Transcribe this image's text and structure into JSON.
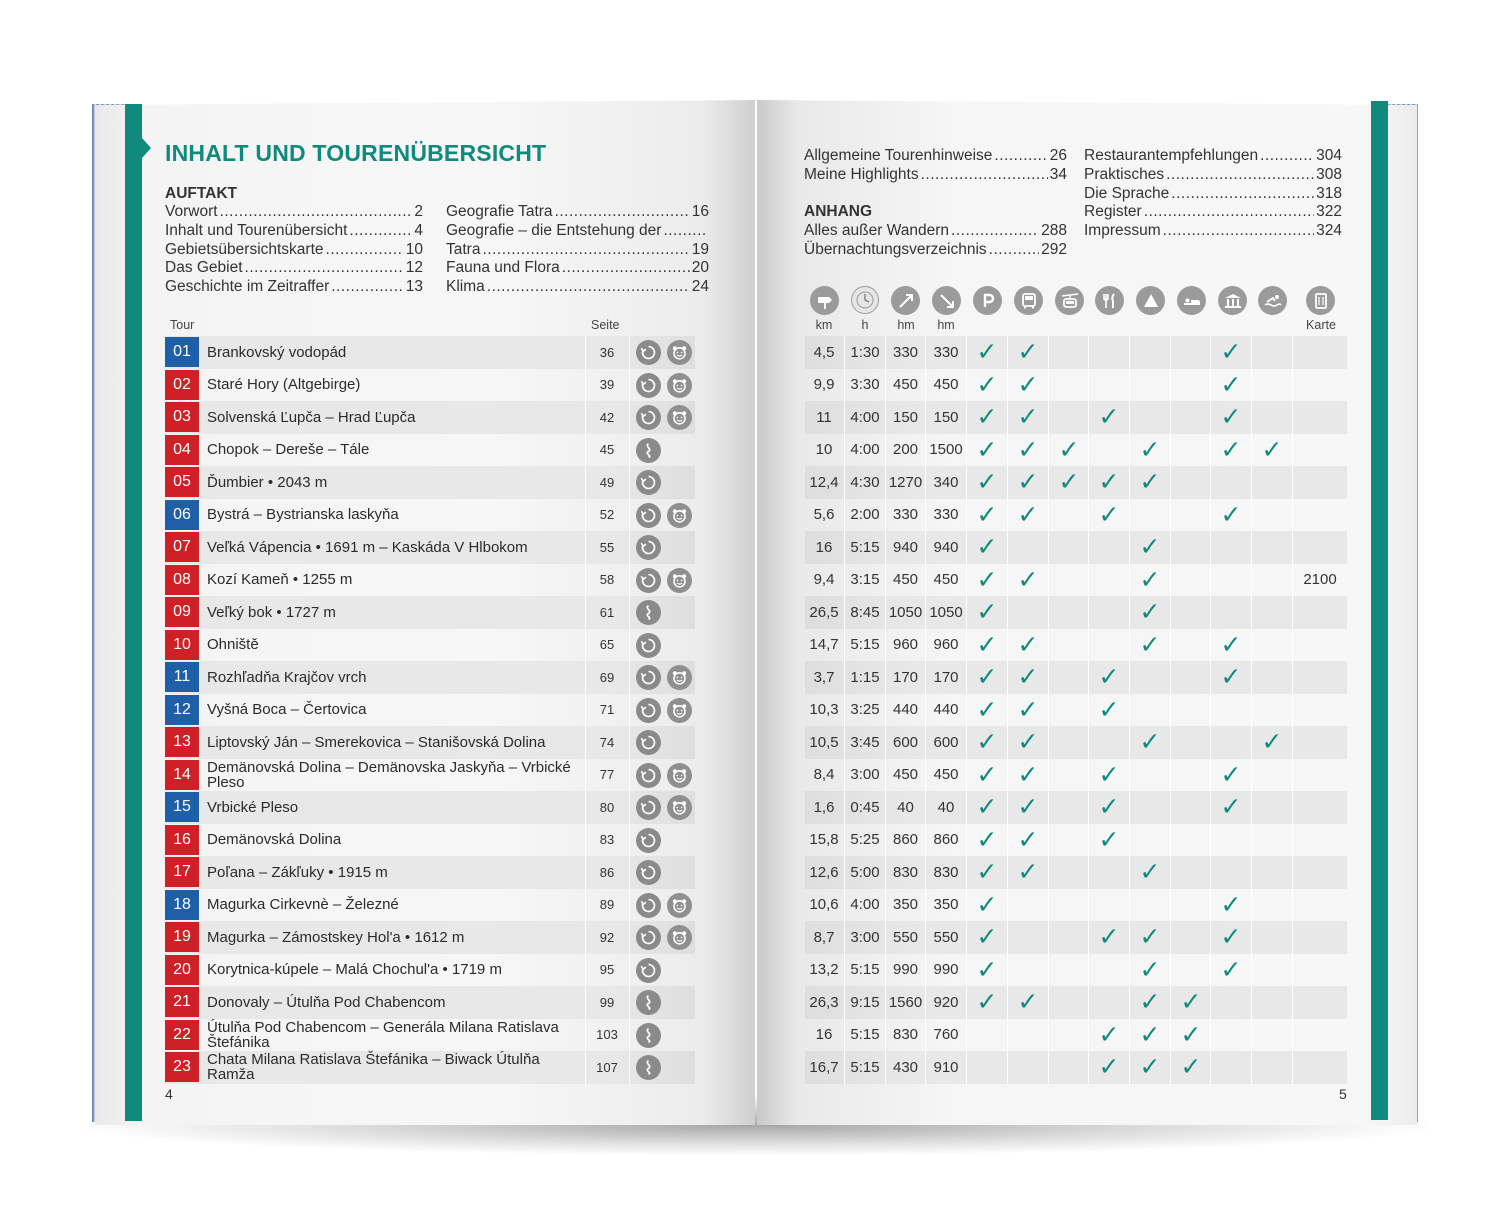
{
  "left_page": {
    "title": "INHALT UND TOURENÜBERSICHT",
    "section_auftakt": "AUFTAKT",
    "toc_col1": [
      {
        "label": "Vorwort",
        "page": "2"
      },
      {
        "label": "Inhalt und Tourenübersicht",
        "page": "4"
      },
      {
        "label": "Gebietsübersichtskarte",
        "page": "10"
      },
      {
        "label": "Das Gebiet",
        "page": "12"
      },
      {
        "label": "Geschichte im Zeitraffer",
        "page": "13"
      }
    ],
    "toc_col2": [
      {
        "label": "Geografie Tatra",
        "page": "16"
      },
      {
        "label": "Geografie – die Entstehung der",
        "page": ""
      },
      {
        "label": "Tatra",
        "page": "19"
      },
      {
        "label": "Fauna und Flora",
        "page": "20"
      },
      {
        "label": "Klima",
        "page": "24"
      }
    ],
    "col_tour": "Tour",
    "col_seite": "Seite",
    "page_number": "4"
  },
  "right_page": {
    "toc_col1": [
      {
        "label": "Allgemeine Tourenhinweise",
        "page": "26"
      },
      {
        "label": "Meine Highlights",
        "page": "34"
      }
    ],
    "section_anhang": "ANHANG",
    "toc_anhang": [
      {
        "label": "Alles außer Wandern",
        "page": "288"
      },
      {
        "label": "Übernachtungsverzeichnis",
        "page": "292"
      }
    ],
    "toc_col2": [
      {
        "label": "Restaurantempfehlungen",
        "page": "304"
      },
      {
        "label": "Praktisches",
        "page": "308"
      },
      {
        "label": "Die Sprache",
        "page": "318"
      },
      {
        "label": "Register",
        "page": "322"
      },
      {
        "label": "Impressum",
        "page": "324"
      }
    ],
    "col_labels": {
      "km": "km",
      "h": "h",
      "hm_up": "hm",
      "hm_down": "hm",
      "karte": "Karte"
    },
    "header_icons": [
      "signpost-icon",
      "clock-icon",
      "ascent-icon",
      "descent-icon",
      "parking-icon",
      "bus-icon",
      "cable-car-icon",
      "restaurant-icon",
      "hut-icon",
      "bed-icon",
      "museum-icon",
      "swimming-icon",
      "map-icon"
    ],
    "page_number": "5"
  },
  "check_symbol": "✓",
  "tours": [
    {
      "num": "01",
      "color": "blue",
      "name": "Brankovský vodopád",
      "page": "36",
      "icons": [
        "circle-route",
        "kids"
      ],
      "km": "4,5",
      "h": "1:30",
      "up": "330",
      "down": "330",
      "checks": [
        1,
        1,
        0,
        0,
        0,
        0,
        1,
        0
      ],
      "karte": ""
    },
    {
      "num": "02",
      "color": "red",
      "name": "Staré Hory (Altgebirge)",
      "page": "39",
      "icons": [
        "circle-route",
        "kids"
      ],
      "km": "9,9",
      "h": "3:30",
      "up": "450",
      "down": "450",
      "checks": [
        1,
        1,
        0,
        0,
        0,
        0,
        1,
        0
      ],
      "karte": ""
    },
    {
      "num": "03",
      "color": "red",
      "name": "Solvenská Ľupča – Hrad Ľupča",
      "page": "42",
      "icons": [
        "circle-route",
        "kids"
      ],
      "km": "11",
      "h": "4:00",
      "up": "150",
      "down": "150",
      "checks": [
        1,
        1,
        0,
        1,
        0,
        0,
        1,
        0
      ],
      "karte": ""
    },
    {
      "num": "04",
      "color": "red",
      "name": "Chopok – Dereše – Tále",
      "page": "45",
      "icons": [
        "point-route"
      ],
      "km": "10",
      "h": "4:00",
      "up": "200",
      "down": "1500",
      "checks": [
        1,
        1,
        1,
        0,
        1,
        0,
        1,
        1
      ],
      "karte": ""
    },
    {
      "num": "05",
      "color": "red",
      "name": "Ďumbier • 2043 m",
      "page": "49",
      "icons": [
        "circle-route"
      ],
      "km": "12,4",
      "h": "4:30",
      "up": "1270",
      "down": "340",
      "checks": [
        1,
        1,
        1,
        1,
        1,
        0,
        0,
        0
      ],
      "karte": ""
    },
    {
      "num": "06",
      "color": "blue",
      "name": "Bystrá – Bystrianska laskyňa",
      "page": "52",
      "icons": [
        "circle-route",
        "kids"
      ],
      "km": "5,6",
      "h": "2:00",
      "up": "330",
      "down": "330",
      "checks": [
        1,
        1,
        0,
        1,
        0,
        0,
        1,
        0
      ],
      "karte": ""
    },
    {
      "num": "07",
      "color": "red",
      "name": "Veľká Vápencia • 1691 m – Kaskáda V Hlbokom",
      "page": "55",
      "icons": [
        "circle-route"
      ],
      "km": "16",
      "h": "5:15",
      "up": "940",
      "down": "940",
      "checks": [
        1,
        0,
        0,
        0,
        1,
        0,
        0,
        0
      ],
      "karte": ""
    },
    {
      "num": "08",
      "color": "red",
      "name": "Kozí Kameň • 1255 m",
      "page": "58",
      "icons": [
        "circle-route",
        "kids"
      ],
      "km": "9,4",
      "h": "3:15",
      "up": "450",
      "down": "450",
      "checks": [
        1,
        1,
        0,
        0,
        1,
        0,
        0,
        0
      ],
      "karte": "2100"
    },
    {
      "num": "09",
      "color": "red",
      "name": "Veľký bok • 1727 m",
      "page": "61",
      "icons": [
        "point-route"
      ],
      "km": "26,5",
      "h": "8:45",
      "up": "1050",
      "down": "1050",
      "checks": [
        1,
        0,
        0,
        0,
        1,
        0,
        0,
        0
      ],
      "karte": ""
    },
    {
      "num": "10",
      "color": "red",
      "name": "Ohniště",
      "page": "65",
      "icons": [
        "circle-route"
      ],
      "km": "14,7",
      "h": "5:15",
      "up": "960",
      "down": "960",
      "checks": [
        1,
        1,
        0,
        0,
        1,
        0,
        1,
        0
      ],
      "karte": ""
    },
    {
      "num": "11",
      "color": "blue",
      "name": "Rozhľadňa Krajčov vrch",
      "page": "69",
      "icons": [
        "circle-route",
        "kids"
      ],
      "km": "3,7",
      "h": "1:15",
      "up": "170",
      "down": "170",
      "checks": [
        1,
        1,
        0,
        1,
        0,
        0,
        1,
        0
      ],
      "karte": ""
    },
    {
      "num": "12",
      "color": "blue",
      "name": "Vyšná Boca – Čertovica",
      "page": "71",
      "icons": [
        "circle-route",
        "kids"
      ],
      "km": "10,3",
      "h": "3:25",
      "up": "440",
      "down": "440",
      "checks": [
        1,
        1,
        0,
        1,
        0,
        0,
        0,
        0
      ],
      "karte": ""
    },
    {
      "num": "13",
      "color": "red",
      "name": "Liptovský Ján – Smerekovica – Stanišovská Dolina",
      "page": "74",
      "icons": [
        "circle-route"
      ],
      "km": "10,5",
      "h": "3:45",
      "up": "600",
      "down": "600",
      "checks": [
        1,
        1,
        0,
        0,
        1,
        0,
        0,
        1
      ],
      "karte": ""
    },
    {
      "num": "14",
      "color": "red",
      "name": "Demänovská Dolina – Demänovska Jaskyňa – Vrbické Pleso",
      "page": "77",
      "icons": [
        "circle-route",
        "kids"
      ],
      "km": "8,4",
      "h": "3:00",
      "up": "450",
      "down": "450",
      "checks": [
        1,
        1,
        0,
        1,
        0,
        0,
        1,
        0
      ],
      "karte": ""
    },
    {
      "num": "15",
      "color": "blue",
      "name": "Vrbické Pleso",
      "page": "80",
      "icons": [
        "circle-route",
        "kids"
      ],
      "km": "1,6",
      "h": "0:45",
      "up": "40",
      "down": "40",
      "checks": [
        1,
        1,
        0,
        1,
        0,
        0,
        1,
        0
      ],
      "karte": ""
    },
    {
      "num": "16",
      "color": "red",
      "name": "Demänovská Dolina",
      "page": "83",
      "icons": [
        "circle-route"
      ],
      "km": "15,8",
      "h": "5:25",
      "up": "860",
      "down": "860",
      "checks": [
        1,
        1,
        0,
        1,
        0,
        0,
        0,
        0
      ],
      "karte": ""
    },
    {
      "num": "17",
      "color": "red",
      "name": "Poľana – Zákľuky • 1915 m",
      "page": "86",
      "icons": [
        "circle-route"
      ],
      "km": "12,6",
      "h": "5:00",
      "up": "830",
      "down": "830",
      "checks": [
        1,
        1,
        0,
        0,
        1,
        0,
        0,
        0
      ],
      "karte": ""
    },
    {
      "num": "18",
      "color": "blue",
      "name": "Magurka Cirkevnè – Železné",
      "page": "89",
      "icons": [
        "circle-route",
        "kids"
      ],
      "km": "10,6",
      "h": "4:00",
      "up": "350",
      "down": "350",
      "checks": [
        1,
        0,
        0,
        0,
        0,
        0,
        1,
        0
      ],
      "karte": ""
    },
    {
      "num": "19",
      "color": "red",
      "name": "Magurka – Zámostskey Hol'a • 1612 m",
      "page": "92",
      "icons": [
        "circle-route",
        "kids"
      ],
      "km": "8,7",
      "h": "3:00",
      "up": "550",
      "down": "550",
      "checks": [
        1,
        0,
        0,
        1,
        1,
        0,
        1,
        0
      ],
      "karte": ""
    },
    {
      "num": "20",
      "color": "red",
      "name": "Korytnica-kúpele – Malá Chochul'a • 1719 m",
      "page": "95",
      "icons": [
        "circle-route"
      ],
      "km": "13,2",
      "h": "5:15",
      "up": "990",
      "down": "990",
      "checks": [
        1,
        0,
        0,
        0,
        1,
        0,
        1,
        0
      ],
      "karte": ""
    },
    {
      "num": "21",
      "color": "red",
      "name": "Donovaly – Útulňa Pod Chabencom",
      "page": "99",
      "icons": [
        "point-route"
      ],
      "km": "26,3",
      "h": "9:15",
      "up": "1560",
      "down": "920",
      "checks": [
        1,
        1,
        0,
        0,
        1,
        1,
        0,
        0
      ],
      "karte": ""
    },
    {
      "num": "22",
      "color": "red",
      "name": "Útulňa Pod Chabencom – Generála Milana Ratislava Štefánika",
      "page": "103",
      "icons": [
        "point-route"
      ],
      "km": "16",
      "h": "5:15",
      "up": "830",
      "down": "760",
      "checks": [
        0,
        0,
        0,
        1,
        1,
        1,
        0,
        0
      ],
      "karte": ""
    },
    {
      "num": "23",
      "color": "red",
      "name": "Chata Milana Ratislava Štefánika – Biwack Útulňa Ramža",
      "page": "107",
      "icons": [
        "point-route"
      ],
      "km": "16,7",
      "h": "5:15",
      "up": "430",
      "down": "910",
      "checks": [
        0,
        0,
        0,
        1,
        1,
        1,
        0,
        0
      ],
      "karte": ""
    }
  ]
}
